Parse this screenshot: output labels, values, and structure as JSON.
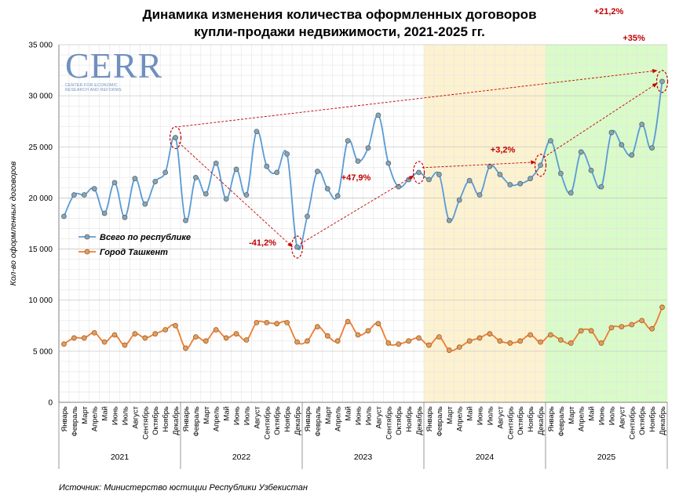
{
  "title_line1": "Динамика изменения количества оформленных договоров",
  "title_line2": "купли-продажи недвижимости, 2021-2025 гг.",
  "source": "Источник: Министерство юстиции Республики Узбекистан",
  "logo": {
    "main": "CERR",
    "sub1": "CENTER FOR ECONOMIC",
    "sub2": "RESEARCH AND REFORMS"
  },
  "colors": {
    "national": "#5b9bd5",
    "tashkent": "#ed7d31",
    "annotation": "#c00000",
    "band_2024": "#fdf2d0",
    "band_2025": "#d9fbc8"
  },
  "chart_data": {
    "type": "line",
    "ylabel": "Кол-во оформленных договоров",
    "ylim": [
      0,
      35000
    ],
    "yticks": [
      "0",
      "5 000",
      "10 000",
      "15 000",
      "20 000",
      "25 000",
      "30 000",
      "35 000"
    ],
    "ytick_values": [
      0,
      5000,
      10000,
      15000,
      20000,
      25000,
      30000,
      35000
    ],
    "months": [
      "Январь",
      "Февраль",
      "Март",
      "Апрель",
      "Май",
      "Июнь",
      "Июль",
      "Август",
      "Сентябрь",
      "Октябрь",
      "Ноябрь",
      "Декабрь"
    ],
    "years": [
      "2021",
      "2022",
      "2023",
      "2024",
      "2025"
    ],
    "legend_placement": "left",
    "grid": true,
    "series": [
      {
        "name": "Всего по республике",
        "values": [
          18200,
          20300,
          20300,
          20900,
          18500,
          21500,
          18100,
          21900,
          19400,
          21600,
          22500,
          25900,
          17800,
          22000,
          20400,
          23400,
          19900,
          22800,
          20300,
          26500,
          23100,
          22500,
          24300,
          15200,
          18200,
          22600,
          20900,
          20200,
          25600,
          23600,
          24900,
          28100,
          23400,
          21100,
          21800,
          22500,
          21800,
          22300,
          17800,
          19800,
          21700,
          20300,
          23100,
          22300,
          21300,
          21400,
          21900,
          23200,
          25600,
          22400,
          20500,
          24500,
          22700,
          21100,
          26400,
          25200,
          24200,
          27200,
          24900,
          31400
        ]
      },
      {
        "name": "Город Ташкент",
        "values": [
          5700,
          6300,
          6300,
          6800,
          5900,
          6600,
          5600,
          6700,
          6300,
          6700,
          7100,
          7500,
          5300,
          6400,
          6000,
          7100,
          6300,
          6700,
          6100,
          7800,
          7800,
          7700,
          7800,
          5900,
          6000,
          7400,
          6500,
          6000,
          7900,
          6600,
          7000,
          7700,
          5800,
          5700,
          6000,
          6300,
          5600,
          6400,
          5100,
          5400,
          6000,
          6300,
          6700,
          6000,
          5800,
          6000,
          6600,
          5900,
          6600,
          6100,
          5800,
          7000,
          7000,
          5800,
          7300,
          7400,
          7600,
          8000,
          7200,
          9300
        ]
      }
    ],
    "annotations": [
      {
        "label": "-41,2%",
        "from": "Декабрь 2021",
        "to": "Декабрь 2022"
      },
      {
        "label": "+47,9%",
        "from": "Декабрь 2022",
        "to": "Декабрь 2023"
      },
      {
        "label": "+3,2%",
        "from": "Декабрь 2023",
        "to": "Декабрь 2024"
      },
      {
        "label": "+35%",
        "from": "Декабрь 2024",
        "to": "Декабрь 2025"
      },
      {
        "label": "+21,2%",
        "from": "Декабрь 2021",
        "to": "Декабрь 2025"
      }
    ]
  }
}
